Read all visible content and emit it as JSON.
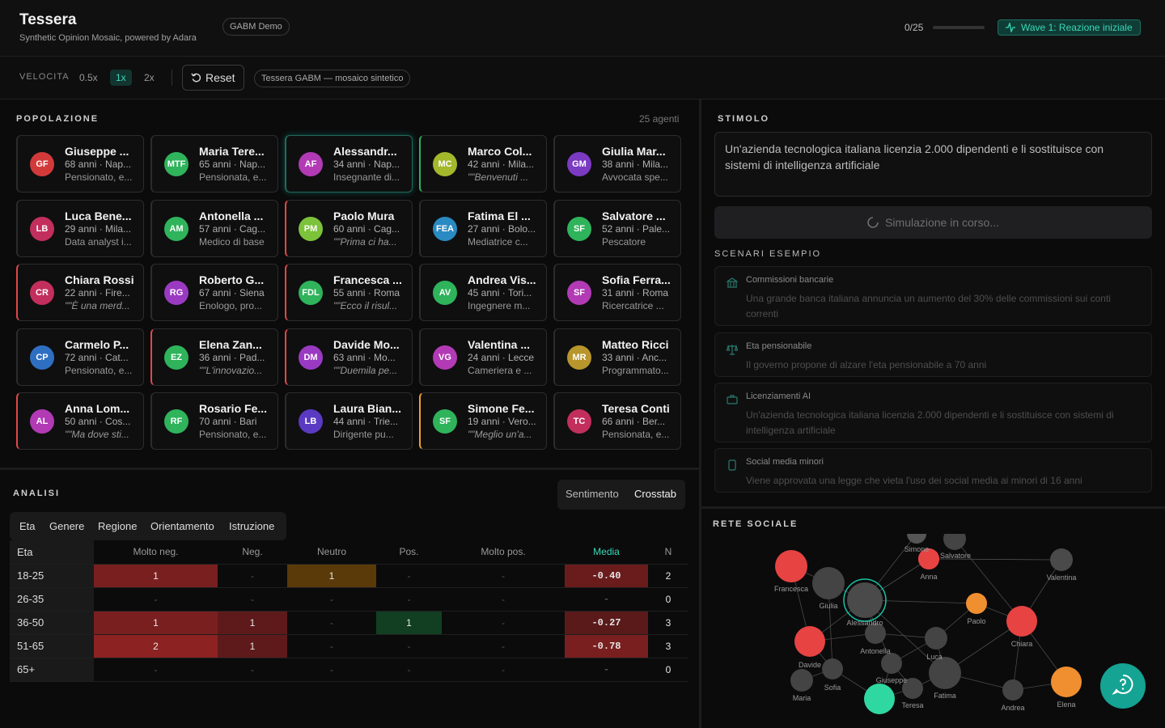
{
  "header": {
    "title": "Tessera",
    "subtitle": "Synthetic Opinion Mosaic, powered by Adara",
    "badge": "GABM Demo",
    "progress_label": "0/25",
    "progress_value": 0,
    "wave": "Wave 1: Reazione iniziale"
  },
  "toolbar": {
    "speed_label": "VELOCITA",
    "speeds": [
      "0.5x",
      "1x",
      "2x"
    ],
    "active_speed": "1x",
    "reset_label": "Reset",
    "mode_pill": "Tessera GABM — mosaico sintetico"
  },
  "population": {
    "title": "POPOLAZIONE",
    "count": "25 agenti",
    "agents": [
      {
        "initials": "GF",
        "name": "Giuseppe ...",
        "meta": "68 anni · Nap...",
        "line": "Pensionato, e...",
        "color": "#d23a3a",
        "border": "#2c2c2e",
        "quote": false
      },
      {
        "initials": "MTF",
        "name": "Maria Tere...",
        "meta": "65 anni · Nap...",
        "line": "Pensionata, e...",
        "color": "#2fb35b",
        "border": "#2c2c2e",
        "quote": false
      },
      {
        "initials": "AF",
        "name": "Alessandr...",
        "meta": "34 anni · Nap...",
        "line": "Insegnante di...",
        "color": "#b23ab5",
        "border": "#2c2c2e",
        "quote": false
      },
      {
        "initials": "MC",
        "name": "Marco Col...",
        "meta": "42 anni · Mila...",
        "line": "\"\"Benvenuti ...",
        "color": "#a3b82b",
        "border": "#2fb35b",
        "quote": true
      },
      {
        "initials": "GM",
        "name": "Giulia Mar...",
        "meta": "38 anni · Mila...",
        "line": "Avvocata spe...",
        "color": "#7b3ac2",
        "border": "#2c2c2e",
        "quote": false
      },
      {
        "initials": "LB",
        "name": "Luca Bene...",
        "meta": "29 anni · Mila...",
        "line": "Data analyst i...",
        "color": "#c22f5c",
        "border": "#2c2c2e",
        "quote": false
      },
      {
        "initials": "AM",
        "name": "Antonella ...",
        "meta": "57 anni · Cag...",
        "line": "Medico di base",
        "color": "#2fb35b",
        "border": "#2c2c2e",
        "quote": false
      },
      {
        "initials": "PM",
        "name": "Paolo Mura",
        "meta": "60 anni · Cag...",
        "line": "\"\"Prima ci ha...",
        "color": "#7cc23a",
        "border": "#e04848",
        "quote": true
      },
      {
        "initials": "FEA",
        "name": "Fatima El ...",
        "meta": "27 anni · Bolo...",
        "line": "Mediatrice c...",
        "color": "#2a8ac2",
        "border": "#2c2c2e",
        "quote": false
      },
      {
        "initials": "SF",
        "name": "Salvatore ...",
        "meta": "52 anni · Pale...",
        "line": "Pescatore",
        "color": "#2fb35b",
        "border": "#2c2c2e",
        "quote": false
      },
      {
        "initials": "CR",
        "name": "Chiara Rossi",
        "meta": "22 anni · Fire...",
        "line": "\"\"È una merd...",
        "color": "#c22f5c",
        "border": "#e04848",
        "quote": true
      },
      {
        "initials": "RG",
        "name": "Roberto G...",
        "meta": "67 anni · Siena",
        "line": "Enologo, pro...",
        "color": "#9a3ac2",
        "border": "#2c2c2e",
        "quote": false
      },
      {
        "initials": "FDL",
        "name": "Francesca ...",
        "meta": "55 anni · Roma",
        "line": "\"\"Ecco il risul...",
        "color": "#2fb35b",
        "border": "#e04848",
        "quote": true
      },
      {
        "initials": "AV",
        "name": "Andrea Vis...",
        "meta": "45 anni · Tori...",
        "line": "Ingegnere m...",
        "color": "#2fb35b",
        "border": "#2c2c2e",
        "quote": false
      },
      {
        "initials": "SF",
        "name": "Sofia Ferra...",
        "meta": "31 anni · Roma",
        "line": "Ricercatrice ...",
        "color": "#b23ab5",
        "border": "#2c2c2e",
        "quote": false
      },
      {
        "initials": "CP",
        "name": "Carmelo P...",
        "meta": "72 anni · Cat...",
        "line": "Pensionato, e...",
        "color": "#2f6fc2",
        "border": "#2c2c2e",
        "quote": false
      },
      {
        "initials": "EZ",
        "name": "Elena Zan...",
        "meta": "36 anni · Pad...",
        "line": "\"\"L'innovazio...",
        "color": "#2fb35b",
        "border": "#e04848",
        "quote": true
      },
      {
        "initials": "DM",
        "name": "Davide Mo...",
        "meta": "63 anni · Mo...",
        "line": "\"\"Duemila pe...",
        "color": "#9a3ac2",
        "border": "#e04848",
        "quote": true
      },
      {
        "initials": "VG",
        "name": "Valentina ...",
        "meta": "24 anni · Lecce",
        "line": "Cameriera e ...",
        "color": "#b23ab5",
        "border": "#2c2c2e",
        "quote": false
      },
      {
        "initials": "MR",
        "name": "Matteo Ricci",
        "meta": "33 anni · Anc...",
        "line": "Programmato...",
        "color": "#b8962b",
        "border": "#2c2c2e",
        "quote": false
      },
      {
        "initials": "AL",
        "name": "Anna Lom...",
        "meta": "50 anni · Cos...",
        "line": "\"\"Ma dove sti...",
        "color": "#b23ab5",
        "border": "#e04848",
        "quote": true
      },
      {
        "initials": "RF",
        "name": "Rosario Fe...",
        "meta": "70 anni · Bari",
        "line": "Pensionato, e...",
        "color": "#2fb35b",
        "border": "#2c2c2e",
        "quote": false
      },
      {
        "initials": "LB",
        "name": "Laura Bian...",
        "meta": "44 anni · Trie...",
        "line": "Dirigente pu...",
        "color": "#5a3ac2",
        "border": "#2c2c2e",
        "quote": false
      },
      {
        "initials": "SF",
        "name": "Simone Fe...",
        "meta": "19 anni · Vero...",
        "line": "\"\"Meglio un'a...",
        "color": "#2fb35b",
        "border": "#f0a030",
        "quote": true
      },
      {
        "initials": "TC",
        "name": "Teresa Conti",
        "meta": "66 anni · Ber...",
        "line": "Pensionata, e...",
        "color": "#c22f5c",
        "border": "#2c2c2e",
        "quote": false
      }
    ]
  },
  "analysis": {
    "title": "ANALISI",
    "view_options": [
      "Sentimento",
      "Crosstab"
    ],
    "active_view": "Crosstab",
    "dimensions": [
      "Eta",
      "Genere",
      "Regione",
      "Orientamento",
      "Istruzione"
    ],
    "table": {
      "row_header": "Eta",
      "columns": [
        "Molto neg.",
        "Neg.",
        "Neutro",
        "Pos.",
        "Molto pos.",
        "Media",
        "N"
      ],
      "rows": [
        {
          "label": "18-25",
          "cells": [
            "1",
            "-",
            "1",
            "-",
            "-"
          ],
          "bg": [
            "#7a1f1f",
            "",
            "#5a3a08",
            "",
            ""
          ],
          "media": "-0.40",
          "media_bg": "#6a1c1c",
          "n": "2"
        },
        {
          "label": "26-35",
          "cells": [
            "-",
            "-",
            "-",
            "-",
            "-"
          ],
          "bg": [
            "",
            "",
            "",
            "",
            ""
          ],
          "media": "-",
          "media_bg": "",
          "n": "0"
        },
        {
          "label": "36-50",
          "cells": [
            "1",
            "1",
            "-",
            "1",
            "-"
          ],
          "bg": [
            "#7a1f1f",
            "#5e1a1a",
            "",
            "#123f22",
            ""
          ],
          "media": "-0.27",
          "media_bg": "#5a1a1a",
          "n": "3"
        },
        {
          "label": "51-65",
          "cells": [
            "2",
            "1",
            "-",
            "-",
            "-"
          ],
          "bg": [
            "#8c2222",
            "#5e1a1a",
            "",
            "",
            ""
          ],
          "media": "-0.78",
          "media_bg": "#7a1f1f",
          "n": "3"
        },
        {
          "label": "65+",
          "cells": [
            "-",
            "-",
            "-",
            "-",
            "-"
          ],
          "bg": [
            "",
            "",
            "",
            "",
            ""
          ],
          "media": "-",
          "media_bg": "",
          "n": "0"
        }
      ]
    }
  },
  "stimulus": {
    "title": "STIMOLO",
    "text": "Un'azienda tecnologica italiana licenzia 2.000 dipendenti e li sostituisce con sistemi di intelligenza artificiale",
    "run_label": "Simulazione in corso..."
  },
  "scenarios": {
    "title": "SCENARI ESEMPIO",
    "items": [
      {
        "icon": "bank-icon",
        "title": "Commissioni bancarie",
        "desc": "Una grande banca italiana annuncia un aumento del 30% delle commissioni sui conti correnti"
      },
      {
        "icon": "scale-icon",
        "title": "Eta pensionabile",
        "desc": "Il governo propone di alzare l'eta pensionabile a 70 anni"
      },
      {
        "icon": "briefcase-icon",
        "title": "Licenziamenti AI",
        "desc": "Un'azienda tecnologica italiana licenzia 2.000 dipendenti e li sostituisce con sistemi di intelligenza artificiale"
      },
      {
        "icon": "phone-icon",
        "title": "Social media minori",
        "desc": "Viene approvata una legge che vieta l'uso dei social media ai minori di 16 anni"
      }
    ]
  },
  "network": {
    "title": "RETE SOCIALE",
    "labels": [
      "Simone",
      "Salvatore",
      "Anna",
      "Valentina",
      "Francesca",
      "Giulia",
      "Alessandro",
      "Paolo",
      "Chiara",
      "Antonella",
      "Luca",
      "Davide",
      "Sofia",
      "Giuseppe",
      "Fatima",
      "Maria",
      "Teresa",
      "Andrea",
      "Elena"
    ]
  }
}
